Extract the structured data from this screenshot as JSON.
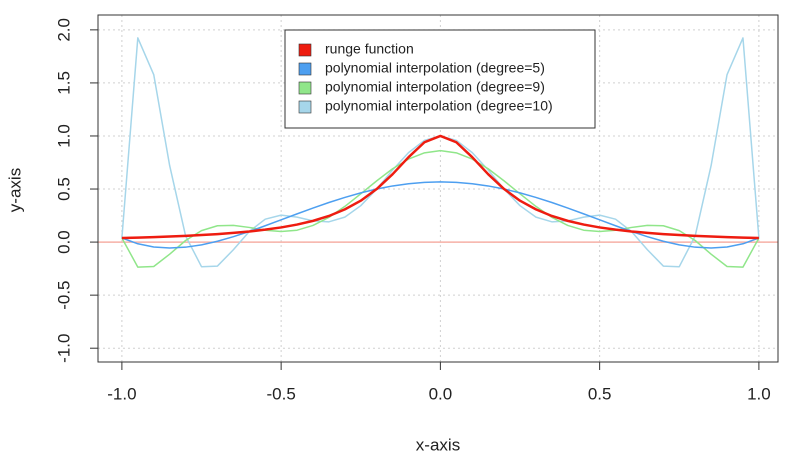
{
  "chart_data": {
    "type": "line",
    "x_label": "x-axis",
    "y_label": "y-axis",
    "x": [
      -1,
      -0.95,
      -0.9,
      -0.85,
      -0.8,
      -0.75,
      -0.7,
      -0.65,
      -0.6,
      -0.55,
      -0.5,
      -0.45,
      -0.4,
      -0.35,
      -0.3,
      -0.25,
      -0.2,
      -0.15,
      -0.1,
      -0.05,
      0,
      0.05,
      0.1,
      0.15,
      0.2,
      0.25,
      0.3,
      0.35,
      0.4,
      0.45,
      0.5,
      0.55,
      0.6,
      0.65,
      0.7,
      0.75,
      0.8,
      0.85,
      0.9,
      0.95,
      1
    ],
    "series": [
      {
        "name": "runge function",
        "color": "#ee1c10",
        "width": 2.5,
        "values": [
          0.0385,
          0.0424,
          0.0471,
          0.0525,
          0.0588,
          0.0664,
          0.0755,
          0.0865,
          0.1,
          0.117,
          0.138,
          0.165,
          0.2,
          0.246,
          0.308,
          0.39,
          0.5,
          0.64,
          0.8,
          0.941,
          1,
          0.941,
          0.8,
          0.64,
          0.5,
          0.39,
          0.308,
          0.246,
          0.2,
          0.165,
          0.138,
          0.117,
          0.1,
          0.0865,
          0.0755,
          0.0664,
          0.0588,
          0.0525,
          0.0471,
          0.0424,
          0.0385
        ]
      },
      {
        "name": "polynomial interpolation (degree=5)",
        "color": "#4d9ff0",
        "width": 1.5,
        "values": [
          0.0385,
          -0.016,
          -0.046,
          -0.056,
          -0.048,
          -0.026,
          0.008,
          0.051,
          0.1,
          0.154,
          0.21,
          0.266,
          0.321,
          0.373,
          0.421,
          0.464,
          0.5,
          0.529,
          0.55,
          0.563,
          0.567,
          0.563,
          0.55,
          0.529,
          0.5,
          0.464,
          0.421,
          0.373,
          0.321,
          0.266,
          0.21,
          0.154,
          0.1,
          0.051,
          0.008,
          -0.026,
          -0.048,
          -0.056,
          -0.046,
          -0.016,
          0.0385
        ]
      },
      {
        "name": "polynomial interpolation (degree=9)",
        "color": "#90e68a",
        "width": 1.5,
        "values": [
          0.0385,
          -0.236,
          -0.23,
          -0.114,
          0.015,
          0.108,
          0.154,
          0.158,
          0.138,
          0.112,
          0.1,
          0.112,
          0.157,
          0.233,
          0.336,
          0.455,
          0.577,
          0.691,
          0.782,
          0.841,
          0.862,
          0.841,
          0.782,
          0.691,
          0.577,
          0.455,
          0.336,
          0.233,
          0.157,
          0.112,
          0.1,
          0.112,
          0.138,
          0.158,
          0.154,
          0.108,
          0.015,
          -0.114,
          -0.23,
          -0.236,
          0.0385
        ]
      },
      {
        "name": "polynomial interpolation (degree=10)",
        "color": "#a6d6ea",
        "width": 1.5,
        "values": [
          0.0385,
          1.924,
          1.578,
          0.721,
          0.0588,
          -0.232,
          -0.226,
          -0.072,
          0.1,
          0.216,
          0.254,
          0.235,
          0.2,
          0.191,
          0.235,
          0.343,
          0.5,
          0.679,
          0.843,
          0.959,
          1,
          0.959,
          0.843,
          0.679,
          0.5,
          0.343,
          0.235,
          0.191,
          0.2,
          0.235,
          0.254,
          0.216,
          0.1,
          -0.072,
          -0.226,
          -0.232,
          0.0588,
          0.721,
          1.578,
          1.924,
          0.0385
        ]
      }
    ],
    "reference_line": {
      "value": 0,
      "color": "#f6b0a6"
    },
    "xlim": [
      -1.075,
      1.06
    ],
    "ylim": [
      -1.13,
      2.14
    ],
    "xticks": [
      {
        "value": -1,
        "label": "-1.0"
      },
      {
        "value": -0.5,
        "label": "-0.5"
      },
      {
        "value": 0,
        "label": "0.0"
      },
      {
        "value": 0.5,
        "label": "0.5"
      },
      {
        "value": 1,
        "label": "1.0"
      }
    ],
    "yticks": [
      {
        "value": -1,
        "label": "-1.0"
      },
      {
        "value": -0.5,
        "label": "-0.5"
      },
      {
        "value": 0,
        "label": "0.0"
      },
      {
        "value": 0.5,
        "label": "0.5"
      },
      {
        "value": 1,
        "label": "1.0"
      },
      {
        "value": 1.5,
        "label": "1.5"
      },
      {
        "value": 2,
        "label": "2.0"
      }
    ],
    "grid": true,
    "legend_position": "top"
  }
}
